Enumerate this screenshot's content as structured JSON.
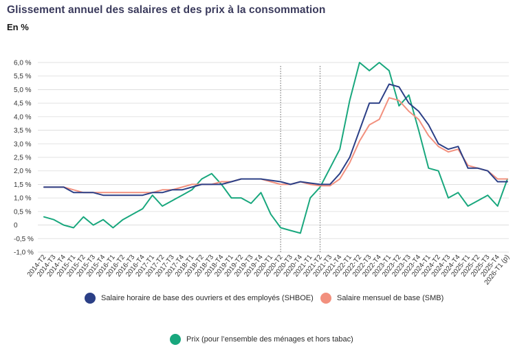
{
  "title": "Glissement annuel des salaires et des prix à la consommation",
  "subtitle": "En %",
  "colors": {
    "shboe": "#2b3f86",
    "smb": "#f2907e",
    "prix": "#18a77d",
    "grid": "#d9d9d9",
    "vline": "#8c8c8c"
  },
  "legend": {
    "shboe": "Salaire horaire de base des ouvriers et des employés (SHBOE)",
    "smb": "Salaire mensuel de base (SMB)",
    "prix": "Prix (pour l’ensemble des ménages et hors tabac)"
  },
  "chart_data": {
    "type": "line",
    "ylim": [
      -1.0,
      6.0
    ],
    "ytick_values": [
      -1.0,
      -0.5,
      0,
      0.5,
      1.0,
      1.5,
      2.0,
      2.5,
      3.0,
      3.5,
      4.0,
      4.5,
      5.0,
      5.5,
      6.0
    ],
    "ytick_labels": [
      "-1,0 %",
      "-0,5 %",
      "0",
      "0,5 %",
      "1,0 %",
      "1,5 %",
      "2,0 %",
      "2,5 %",
      "3,0 %",
      "3,5 %",
      "4,0 %",
      "4,5 %",
      "5,0 %",
      "5,5 %",
      "6,0 %"
    ],
    "categories": [
      "2014-T2",
      "2014-T3",
      "2014-T4",
      "2015-T1",
      "2015-T2",
      "2015-T3",
      "2015-T4",
      "2016-T1",
      "2016-T2",
      "2016-T3",
      "2016-T4",
      "2017-T1",
      "2017-T2",
      "2017-T3",
      "2017-T4",
      "2018-T1",
      "2018-T2",
      "2018-T3",
      "2018-T4",
      "2019-T1",
      "2019-T2",
      "2019-T3",
      "2019-T4",
      "2020-T1",
      "2020-T2",
      "2020-T3",
      "2020-T4",
      "2021-T1",
      "2021-T2",
      "2021-T3",
      "2021-T4",
      "2022-T1",
      "2022-T2",
      "2022-T3",
      "2022-T4",
      "2023-T1",
      "2023-T2",
      "2023-T3",
      "2023-T4",
      "2024-T1",
      "2024-T2",
      "2024-T3",
      "2024-T4",
      "2025-T1",
      "2025-T2",
      "2025-T3",
      "2025-T4",
      "2026-T1 (p)"
    ],
    "vertical_markers": [
      "2020-T2",
      "2021-T2"
    ],
    "grid": "horizontal",
    "legend_position": "bottom",
    "series": [
      {
        "key": "shboe",
        "name": "Salaire horaire de base des ouvriers et des employés (SHBOE)",
        "values": [
          1.4,
          1.4,
          1.4,
          1.2,
          1.2,
          1.2,
          1.1,
          1.1,
          1.1,
          1.1,
          1.1,
          1.2,
          1.2,
          1.3,
          1.3,
          1.4,
          1.5,
          1.5,
          1.5,
          1.6,
          1.7,
          1.7,
          1.7,
          1.65,
          1.6,
          1.5,
          1.6,
          1.55,
          1.5,
          1.5,
          1.9,
          2.5,
          3.5,
          4.5,
          4.5,
          5.2,
          5.1,
          4.5,
          4.2,
          3.7,
          3.0,
          2.8,
          2.9,
          2.1,
          2.1,
          2.0,
          1.6,
          1.6
        ]
      },
      {
        "key": "smb",
        "name": "Salaire mensuel de base (SMB)",
        "values": [
          1.4,
          1.4,
          1.4,
          1.3,
          1.2,
          1.2,
          1.2,
          1.2,
          1.2,
          1.2,
          1.2,
          1.2,
          1.3,
          1.3,
          1.4,
          1.5,
          1.5,
          1.5,
          1.6,
          1.6,
          1.7,
          1.7,
          1.7,
          1.6,
          1.5,
          1.5,
          1.6,
          1.5,
          1.45,
          1.45,
          1.7,
          2.3,
          3.1,
          3.7,
          3.9,
          4.7,
          4.6,
          4.2,
          3.9,
          3.3,
          2.9,
          2.7,
          2.8,
          2.2,
          2.1,
          2.0,
          1.7,
          1.7
        ]
      },
      {
        "key": "prix",
        "name": "Prix (pour l’ensemble des ménages et hors tabac)",
        "values": [
          0.3,
          0.2,
          0.0,
          -0.1,
          0.3,
          0.0,
          0.2,
          -0.1,
          0.2,
          0.4,
          0.6,
          1.1,
          0.7,
          0.9,
          1.1,
          1.3,
          1.7,
          1.9,
          1.5,
          1.0,
          1.0,
          0.8,
          1.2,
          0.4,
          -0.1,
          -0.2,
          -0.3,
          1.0,
          1.4,
          2.1,
          2.8,
          4.6,
          6.0,
          5.7,
          6.0,
          5.7,
          4.4,
          4.8,
          3.5,
          2.1,
          2.0,
          1.0,
          1.2,
          0.7,
          0.9,
          1.1,
          0.7,
          1.7
        ]
      }
    ]
  }
}
